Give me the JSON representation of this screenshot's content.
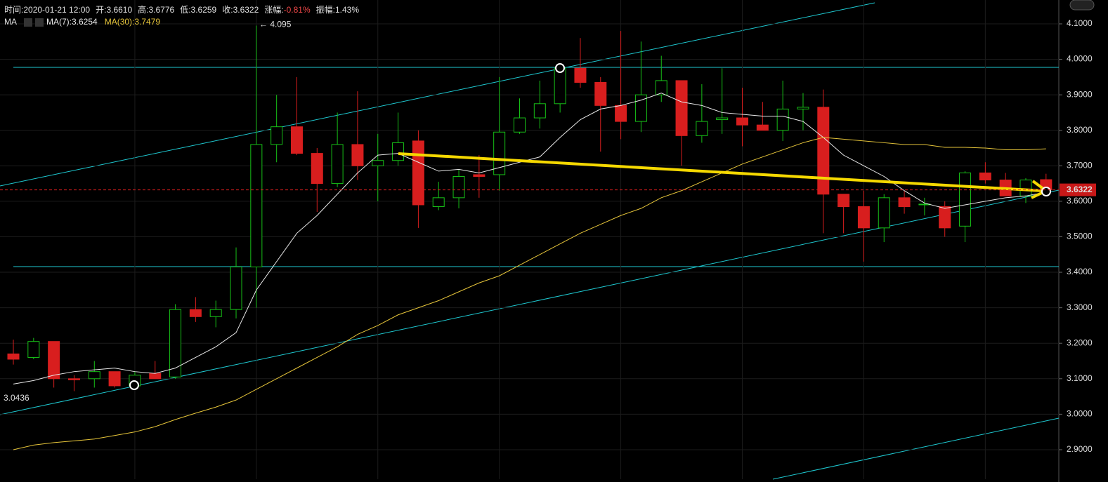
{
  "header": {
    "items": [
      {
        "label": "时间:",
        "value": "2020-01-21 12:00"
      },
      {
        "label": "开:",
        "value": "3.6610"
      },
      {
        "label": "高:",
        "value": "3.6776"
      },
      {
        "label": "低:",
        "value": "3.6259"
      },
      {
        "label": "收:",
        "value": "3.6322"
      },
      {
        "label": "涨幅:",
        "value": "-0.81%",
        "color": "#f04848"
      },
      {
        "label": "振幅:",
        "value": "1.43%"
      }
    ],
    "indicator": "MA"
  },
  "chart_data": {
    "type": "candlestick",
    "up_color": "#17c017",
    "down_color": "#d81e1e",
    "ylim": [
      2.8169,
      4.1672
    ],
    "yticks": [
      {
        "value": 2.9,
        "label": "2.9000"
      },
      {
        "value": 3.0,
        "label": "3.0000"
      },
      {
        "value": 3.1,
        "label": "3.1000"
      },
      {
        "value": 3.2,
        "label": "3.2000"
      },
      {
        "value": 3.3,
        "label": "3.3000"
      },
      {
        "value": 3.4,
        "label": "3.4000"
      },
      {
        "value": 3.5,
        "label": "3.5000"
      },
      {
        "value": 3.6,
        "label": "3.6000"
      },
      {
        "value": 3.7,
        "label": "3.7000"
      },
      {
        "value": 3.8,
        "label": "3.8000"
      },
      {
        "value": 3.9,
        "label": "3.9000"
      },
      {
        "value": 4.0,
        "label": "4.0000"
      },
      {
        "value": 4.1,
        "label": "4.1000"
      }
    ],
    "grid": true,
    "open": [
      3.17,
      3.16,
      3.205,
      3.1,
      3.1,
      3.12,
      3.08,
      3.115,
      3.105,
      3.295,
      3.275,
      3.295,
      3.415,
      3.76,
      3.81,
      3.735,
      3.65,
      3.76,
      3.7,
      3.715,
      3.77,
      3.585,
      3.61,
      3.675,
      3.675,
      3.795,
      3.835,
      3.875,
      3.975,
      3.935,
      3.87,
      3.825,
      3.9,
      3.94,
      3.785,
      3.83,
      3.835,
      3.815,
      3.8,
      3.86,
      3.865,
      3.62,
      3.585,
      3.525,
      3.61,
      3.59,
      3.585,
      3.53,
      3.68,
      3.66,
      3.615,
      3.661
    ],
    "high": [
      3.21,
      3.215,
      3.205,
      3.11,
      3.15,
      3.12,
      3.12,
      3.15,
      3.31,
      3.33,
      3.32,
      3.47,
      4.095,
      3.9,
      3.95,
      3.75,
      3.85,
      3.91,
      3.79,
      3.85,
      3.8,
      3.655,
      3.69,
      3.73,
      3.95,
      3.89,
      3.94,
      3.98,
      4.06,
      3.95,
      4.08,
      4.05,
      4.01,
      3.94,
      3.93,
      3.975,
      3.92,
      3.88,
      3.94,
      3.905,
      3.915,
      3.62,
      3.63,
      3.62,
      3.63,
      3.61,
      3.6,
      3.685,
      3.71,
      3.68,
      3.665,
      3.6776
    ],
    "low": [
      3.14,
      3.155,
      3.075,
      3.065,
      3.075,
      3.075,
      3.075,
      3.1,
      3.1,
      3.26,
      3.245,
      3.27,
      3.3,
      3.71,
      3.73,
      3.57,
      3.64,
      3.66,
      3.6,
      3.7,
      3.525,
      3.575,
      3.58,
      3.61,
      3.63,
      3.79,
      3.805,
      3.85,
      3.92,
      3.74,
      3.775,
      3.795,
      3.88,
      3.7,
      3.765,
      3.79,
      3.755,
      3.8,
      3.77,
      3.8,
      3.51,
      3.51,
      3.43,
      3.485,
      3.565,
      3.56,
      3.5,
      3.485,
      3.65,
      3.615,
      3.595,
      3.6259
    ],
    "close": [
      3.155,
      3.205,
      3.1,
      3.097,
      3.12,
      3.08,
      3.11,
      3.1,
      3.295,
      3.275,
      3.295,
      3.415,
      3.76,
      3.81,
      3.735,
      3.65,
      3.76,
      3.7,
      3.715,
      3.765,
      3.59,
      3.61,
      3.67,
      3.67,
      3.795,
      3.835,
      3.875,
      3.975,
      3.935,
      3.87,
      3.825,
      3.9,
      3.94,
      3.785,
      3.825,
      3.835,
      3.815,
      3.8,
      3.86,
      3.865,
      3.62,
      3.585,
      3.525,
      3.61,
      3.585,
      3.592,
      3.525,
      3.68,
      3.66,
      3.615,
      3.66,
      3.6322
    ],
    "series": [
      {
        "name": "MA(7):3.6254",
        "color": "#e8e8e8",
        "values": [
          3.085,
          3.095,
          3.11,
          3.12,
          3.125,
          3.13,
          3.12,
          3.115,
          3.13,
          3.16,
          3.19,
          3.23,
          3.35,
          3.43,
          3.51,
          3.56,
          3.62,
          3.68,
          3.73,
          3.735,
          3.71,
          3.685,
          3.69,
          3.68,
          3.695,
          3.71,
          3.725,
          3.78,
          3.83,
          3.86,
          3.87,
          3.885,
          3.905,
          3.88,
          3.87,
          3.85,
          3.845,
          3.84,
          3.84,
          3.825,
          3.78,
          3.73,
          3.7,
          3.67,
          3.63,
          3.595,
          3.58,
          3.59,
          3.6,
          3.61,
          3.615,
          3.6254
        ]
      },
      {
        "name": "MA(30):3.7479",
        "color": "#e6c53a",
        "values": [
          2.9,
          2.913,
          2.92,
          2.925,
          2.93,
          2.94,
          2.95,
          2.965,
          2.985,
          3.003,
          3.02,
          3.04,
          3.07,
          3.1,
          3.13,
          3.16,
          3.19,
          3.225,
          3.25,
          3.28,
          3.3,
          3.32,
          3.345,
          3.37,
          3.39,
          3.42,
          3.45,
          3.48,
          3.51,
          3.535,
          3.56,
          3.58,
          3.61,
          3.63,
          3.655,
          3.68,
          3.705,
          3.725,
          3.745,
          3.765,
          3.78,
          3.775,
          3.77,
          3.765,
          3.76,
          3.76,
          3.752,
          3.752,
          3.75,
          3.745,
          3.745,
          3.7479
        ]
      }
    ],
    "last_price": {
      "value": 3.6322,
      "label": "3.6322"
    },
    "annotations": [
      {
        "text": "← 4.095",
        "value": 4.095
      },
      {
        "text": "3.0436",
        "value": 3.0436
      }
    ]
  }
}
